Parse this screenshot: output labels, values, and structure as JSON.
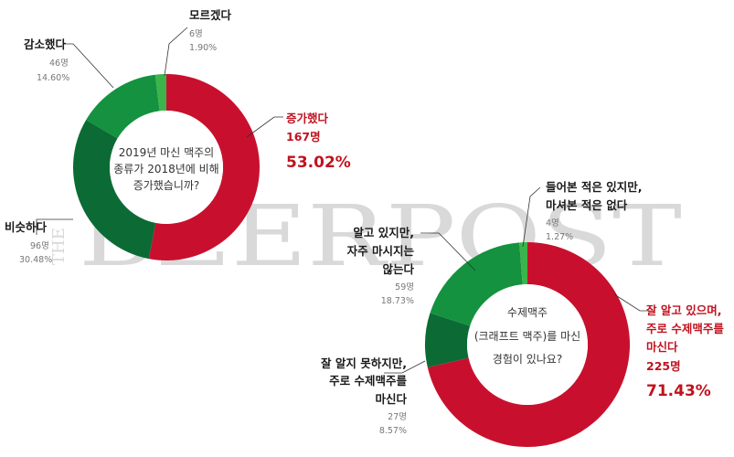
{
  "watermark": {
    "small": "THE",
    "big": "BEERPOST"
  },
  "colors": {
    "red": "#c8102e",
    "dark_green": "#0c6b35",
    "green": "#14923f",
    "light_green": "#3cb44b",
    "highlight_text": "#c1121f"
  },
  "chart_data": [
    {
      "type": "pie",
      "donut": true,
      "center_text": [
        "2019년 마신 맥주의",
        "종류가 2018년에 비해",
        "증가했습니까?"
      ],
      "slices": [
        {
          "label": "증가했다",
          "count": "167명",
          "percent_text": "53.02%",
          "value": 53.02,
          "color": "#c8102e"
        },
        {
          "label": "비슷하다",
          "count": "96명",
          "percent_text": "30.48%",
          "value": 30.48,
          "color": "#0c6b35"
        },
        {
          "label": "감소했다",
          "count": "46명",
          "percent_text": "14.60%",
          "value": 14.6,
          "color": "#14923f"
        },
        {
          "label": "모르겠다",
          "count": "6명",
          "percent_text": "1.90%",
          "value": 1.9,
          "color": "#3cb44b"
        }
      ]
    },
    {
      "type": "pie",
      "donut": true,
      "center_text": [
        "수제맥주",
        "(크래프트 맥주)를 마신",
        "경험이 있나요?"
      ],
      "slices": [
        {
          "label_lines": [
            "잘 알고 있으며,",
            "주로 수제맥주를",
            "마신다"
          ],
          "count": "225명",
          "percent_text": "71.43%",
          "value": 71.43,
          "color": "#c8102e"
        },
        {
          "label_lines": [
            "잘 알지 못하지만,",
            "주로 수제맥주를",
            "마신다"
          ],
          "count": "27명",
          "percent_text": "8.57%",
          "value": 8.57,
          "color": "#0c6b35"
        },
        {
          "label_lines": [
            "알고 있지만,",
            "자주 마시지는",
            "않는다"
          ],
          "count": "59명",
          "percent_text": "18.73%",
          "value": 18.73,
          "color": "#14923f"
        },
        {
          "label_lines": [
            "들어본 적은 있지만,",
            "마셔본 적은 없다"
          ],
          "count": "4명",
          "percent_text": "1.27%",
          "value": 1.27,
          "color": "#3cb44b"
        }
      ]
    }
  ]
}
